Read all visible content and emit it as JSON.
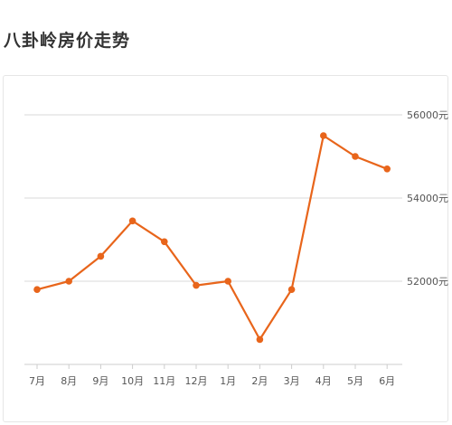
{
  "title": "八卦岭房价走势",
  "colors": {
    "line": "#e8651b",
    "grid": "#d9d9d9",
    "axis": "#555555"
  },
  "chart_data": {
    "type": "line",
    "title": "八卦岭房价走势",
    "xlabel": "",
    "ylabel": "",
    "categories": [
      "7月",
      "8月",
      "9月",
      "10月",
      "11月",
      "12月",
      "1月",
      "2月",
      "3月",
      "4月",
      "5月",
      "6月"
    ],
    "series": [
      {
        "values": [
          51800,
          52000,
          52600,
          53450,
          52950,
          51900,
          52000,
          50600,
          51800,
          55500,
          55000,
          54700
        ]
      }
    ],
    "yticks": [
      52000,
      54000,
      56000
    ],
    "ytick_labels": [
      "52000元",
      "54000元",
      "56000元"
    ],
    "ylim": [
      49500,
      56000
    ],
    "grid": true,
    "legend": "none"
  }
}
